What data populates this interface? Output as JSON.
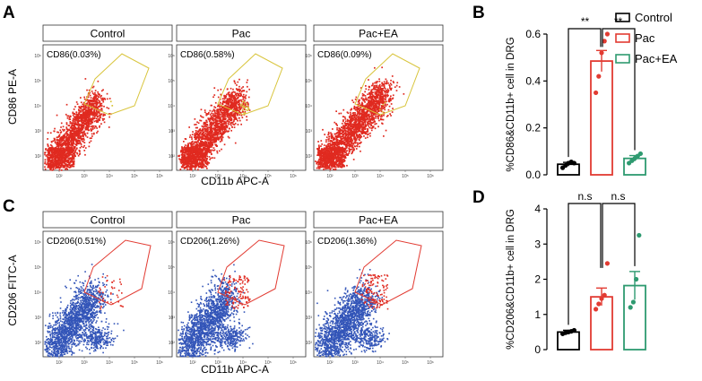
{
  "colors": {
    "control": "#000000",
    "pac": "#e23b32",
    "pac_ea": "#2e9a70",
    "facs_red": "#e02a20",
    "facs_blue": "#3355b8",
    "gate_yellow": "#d8c43a",
    "gate_red": "#e23b32"
  },
  "panel_letters": {
    "a": "A",
    "b": "B",
    "c": "C",
    "d": "D"
  },
  "flow_a": {
    "ylabel": "CD86 PE-A",
    "xlabel": "CD11b APC-A",
    "plots": [
      {
        "title": "Control",
        "gate": "CD86(0.03%)"
      },
      {
        "title": "Pac",
        "gate": "CD86(0.58%)"
      },
      {
        "title": "Pac+EA",
        "gate": "CD86(0.09%)"
      }
    ],
    "x_ticks": [
      "10²",
      "10³",
      "10⁴",
      "10⁵",
      "10⁶"
    ],
    "y_ticks": [
      "10⁶",
      "10⁵",
      "10⁴",
      "10³",
      "10²"
    ]
  },
  "flow_c": {
    "ylabel": "CD206 FITC-A",
    "xlabel": "CD11b APC-A",
    "plots": [
      {
        "title": "Control",
        "gate": "CD206(0.51%)"
      },
      {
        "title": "Pac",
        "gate": "CD206(1.26%)"
      },
      {
        "title": "Pac+EA",
        "gate": "CD206(1.36%)"
      }
    ],
    "x_ticks": [
      "10²",
      "10³",
      "10⁴",
      "10⁵",
      "10⁶"
    ],
    "y_ticks": [
      "10⁶",
      "10⁵",
      "10⁴",
      "10³",
      "10²"
    ]
  },
  "legend": [
    "Control",
    "Pac",
    "Pac+EA"
  ],
  "chart_data": [
    {
      "type": "bar",
      "id": "B",
      "categories": [
        "Control",
        "Pac",
        "Pac+EA"
      ],
      "values": [
        0.045,
        0.485,
        0.07
      ],
      "errors": [
        0.008,
        0.045,
        0.012
      ],
      "points": [
        [
          0.03,
          0.04,
          0.05,
          0.055,
          0.05
        ],
        [
          0.35,
          0.42,
          0.52,
          0.57,
          0.6
        ],
        [
          0.05,
          0.06,
          0.07,
          0.08,
          0.09
        ]
      ],
      "ylabel": "%CD86&CD11b+ cell in DRG",
      "ylim": [
        0,
        0.6
      ],
      "yticks": [
        "0.0",
        "0.2",
        "0.4",
        "0.6"
      ],
      "sig": [
        "**",
        "**"
      ]
    },
    {
      "type": "bar",
      "id": "D",
      "categories": [
        "Control",
        "Pac",
        "Pac+EA"
      ],
      "values": [
        0.5,
        1.5,
        1.82
      ],
      "errors": [
        0.05,
        0.25,
        0.4
      ],
      "points": [
        [
          0.45,
          0.48,
          0.5,
          0.52,
          0.55
        ],
        [
          1.15,
          1.3,
          1.45,
          1.55,
          2.45
        ],
        [
          1.2,
          1.35,
          2.0,
          3.25
        ]
      ],
      "ylabel": "%CD206&CD11b+ cell in DRG",
      "ylim": [
        0,
        4
      ],
      "yticks": [
        "0",
        "1",
        "2",
        "3",
        "4"
      ],
      "sig": [
        "n.s",
        "n.s"
      ]
    }
  ]
}
